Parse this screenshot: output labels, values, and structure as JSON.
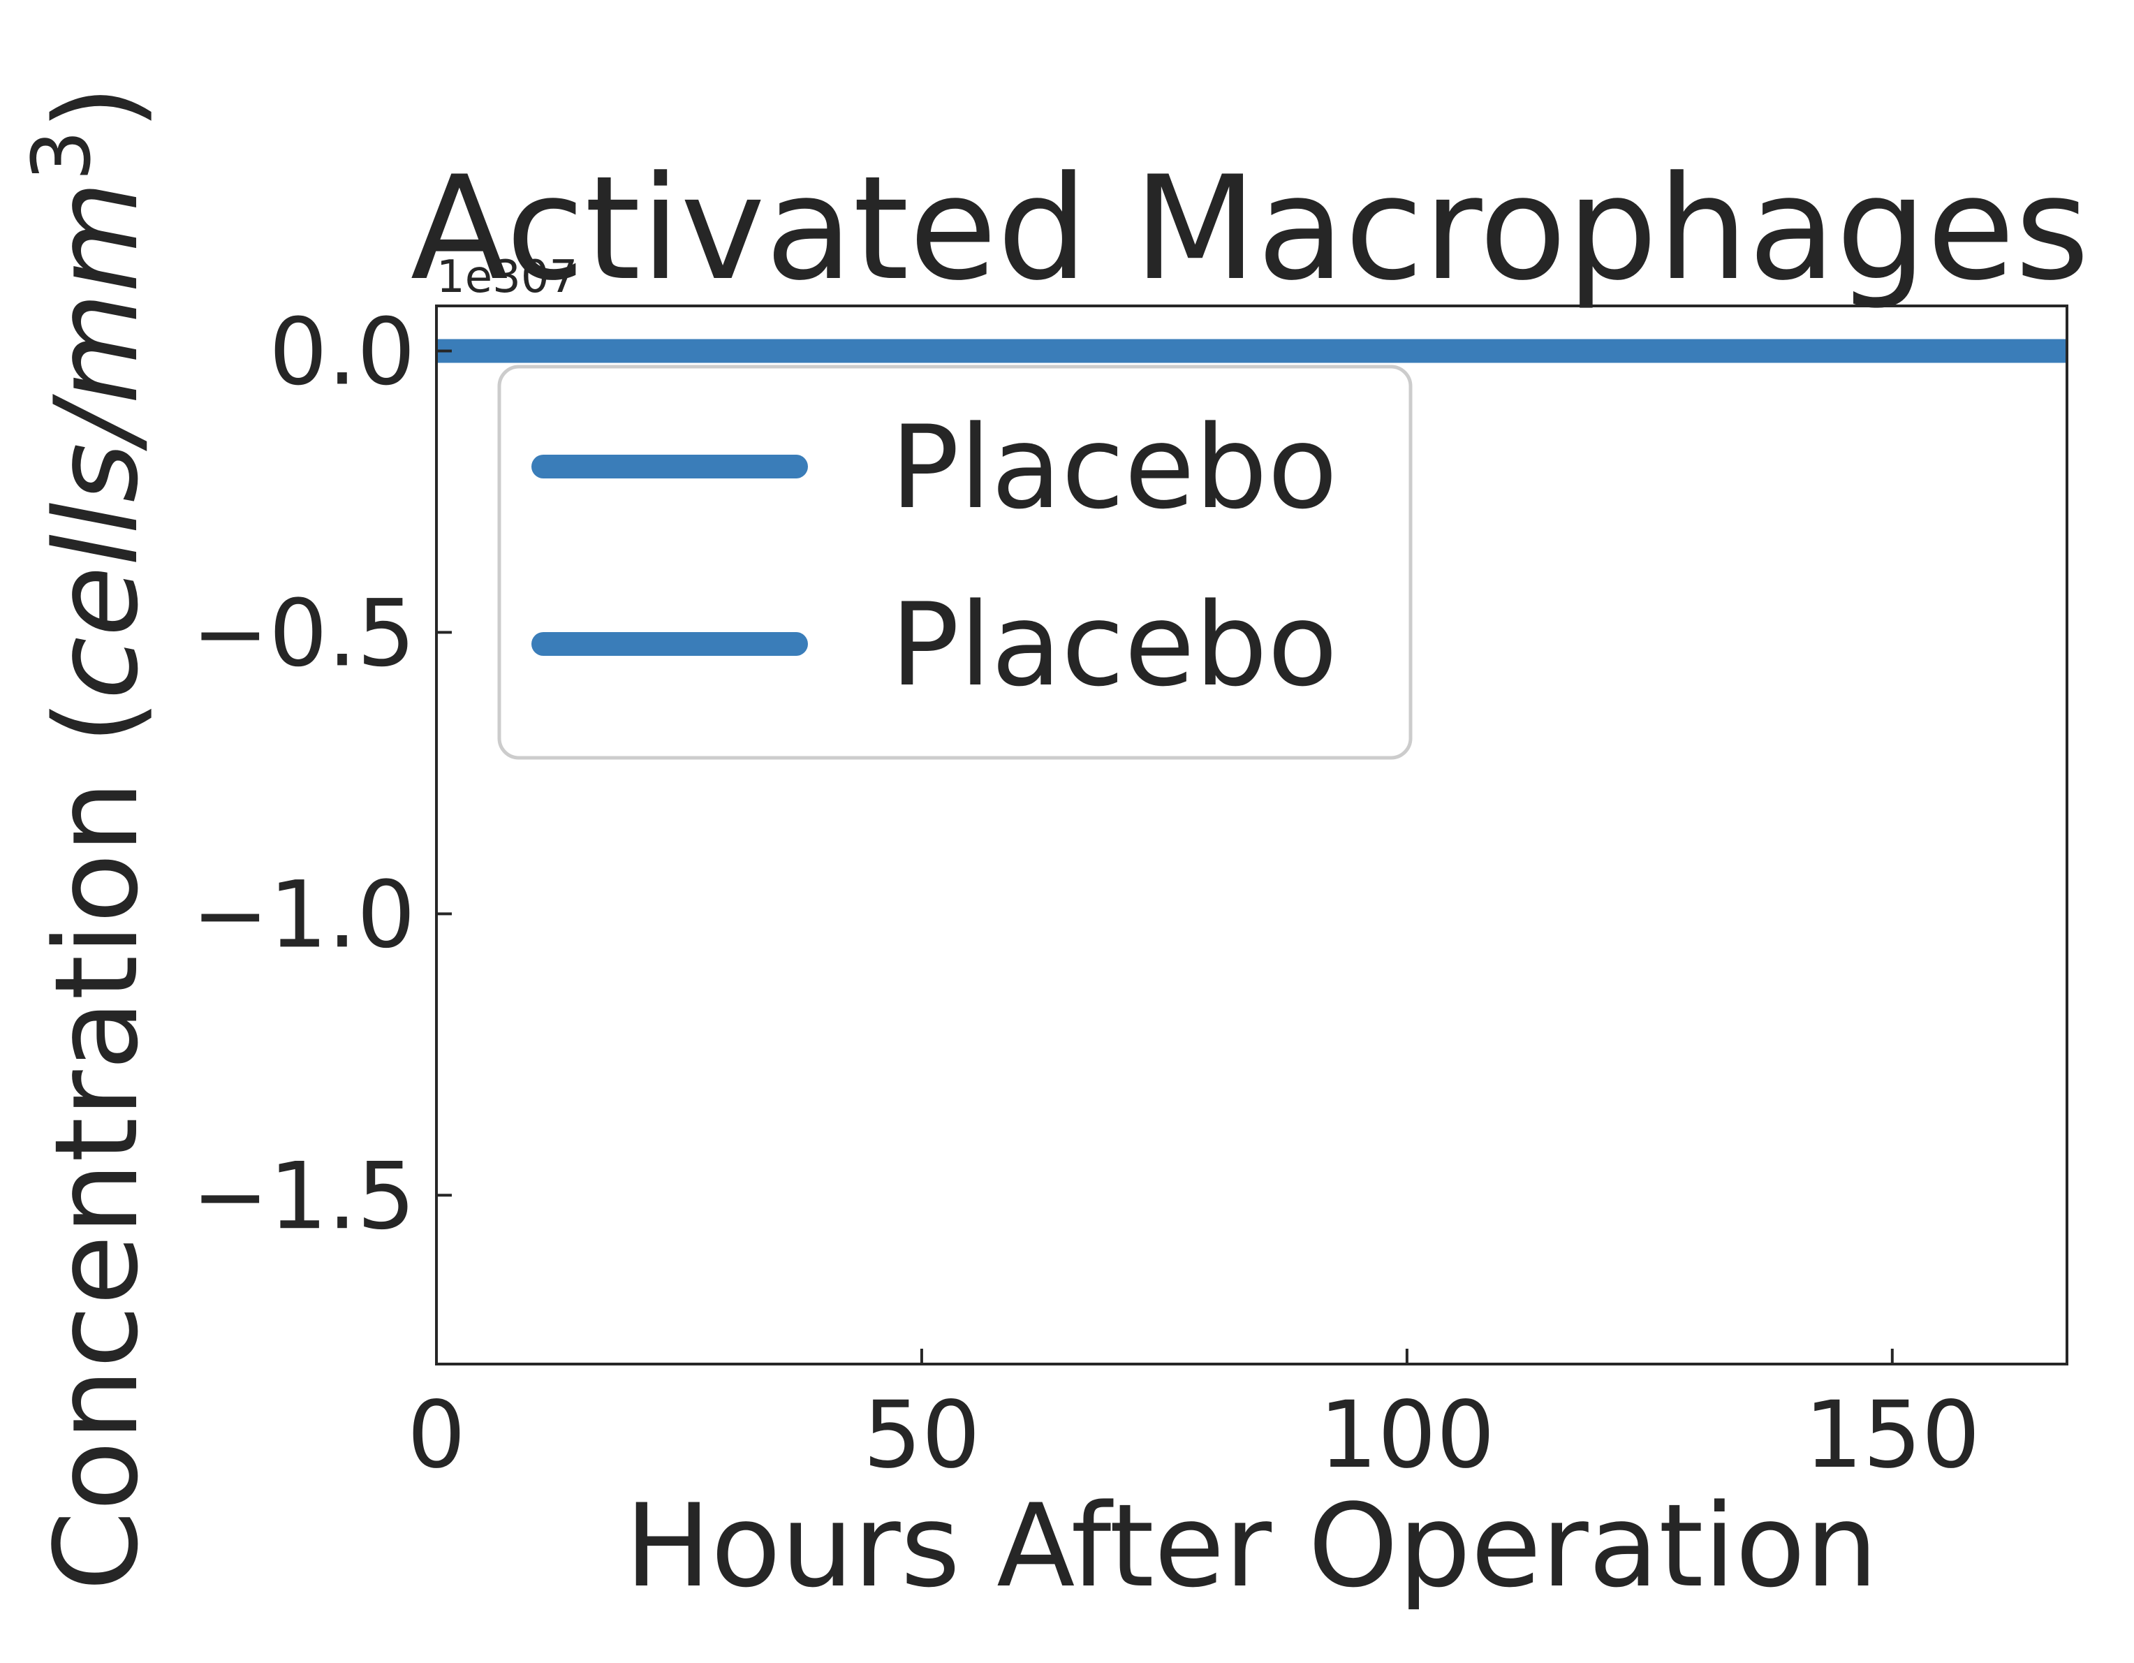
{
  "chart_data": {
    "type": "line",
    "title": "Activated Macrophages",
    "xlabel": "Hours After Operation",
    "ylabel_main": "Concentration (",
    "ylabel_units": "cells/mm",
    "ylabel_exp": "3",
    "ylabel_close": ")",
    "offset_text": "1e307",
    "xlim": [
      0,
      168
    ],
    "ylim": [
      -1.8,
      0.08
    ],
    "xticks": [
      0,
      50,
      100,
      150
    ],
    "xtick_labels": [
      "0",
      "50",
      "100",
      "150"
    ],
    "yticks": [
      0.0,
      -0.5,
      -1.0,
      -1.5
    ],
    "ytick_labels": [
      "0.0",
      "−0.5",
      "−1.0",
      "−1.5"
    ],
    "grid": false,
    "legend_position": "upper-left",
    "series": [
      {
        "name": "Placebo",
        "color": "#3a7db9",
        "x": [
          0,
          168
        ],
        "y": [
          0.0,
          0.0
        ]
      },
      {
        "name": "Placebo",
        "color": "#3a7db9",
        "x": [
          0,
          168
        ],
        "y": [
          0.0,
          0.0
        ]
      }
    ]
  }
}
